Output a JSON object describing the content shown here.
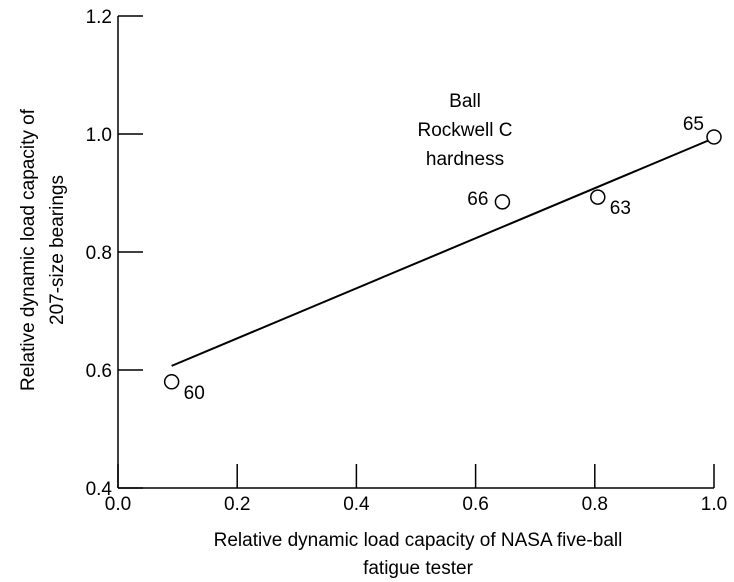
{
  "chart_data": {
    "type": "scatter",
    "title": "",
    "xlabel_lines": [
      "Relative dynamic load capacity of NASA five-ball",
      "fatigue tester"
    ],
    "ylabel_lines": [
      "Relative dynamic load capacity of",
      "207-size bearings"
    ],
    "xlim": [
      0.0,
      1.0
    ],
    "ylim": [
      0.4,
      1.2
    ],
    "x_ticks": [
      0.0,
      0.2,
      0.4,
      0.6,
      0.8,
      1.0
    ],
    "x_tick_labels": [
      "0.0",
      "0.2",
      "0.4",
      "0.6",
      "0.8",
      "1.0"
    ],
    "y_ticks": [
      0.4,
      0.6,
      0.8,
      1.0,
      1.2
    ],
    "y_tick_labels": [
      "0.4",
      "0.6",
      "0.8",
      "1.0",
      "1.2"
    ],
    "grid": false,
    "points": [
      {
        "x": 0.09,
        "y": 0.58,
        "label": "60",
        "label_position": "lower-right"
      },
      {
        "x": 0.645,
        "y": 0.885,
        "label": "66",
        "label_position": "left"
      },
      {
        "x": 0.805,
        "y": 0.893,
        "label": "63",
        "label_position": "lower-right"
      },
      {
        "x": 1.0,
        "y": 0.995,
        "label": "65",
        "label_position": "upper-left"
      }
    ],
    "fit_line": {
      "x": [
        0.09,
        1.0
      ],
      "y": [
        0.607,
        0.993
      ]
    },
    "annotation_lines": [
      "Ball",
      "Rockwell C",
      "hardness"
    ],
    "marker": "open-circle",
    "line_color": "#000000"
  }
}
